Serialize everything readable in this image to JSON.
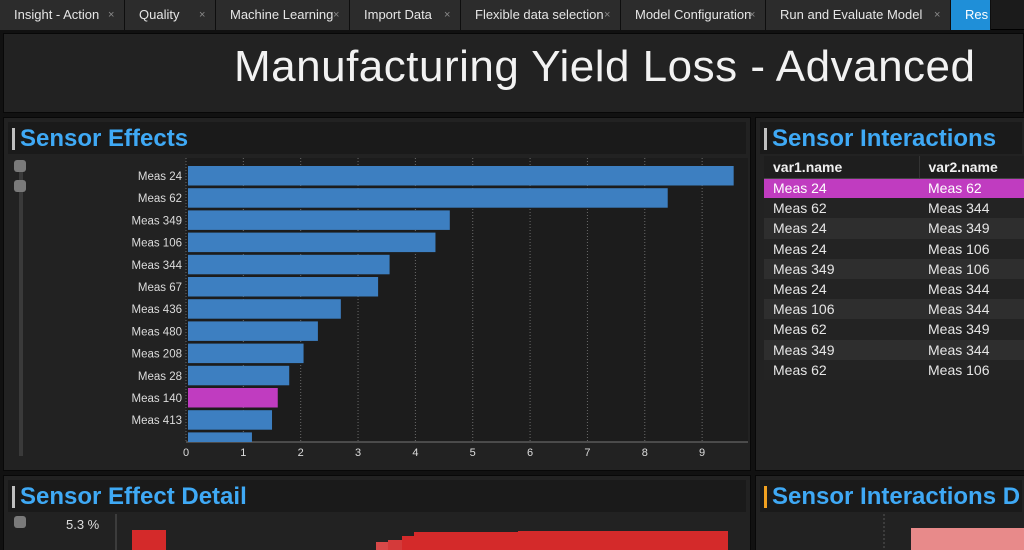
{
  "tabs": [
    {
      "label": "Insight - Action",
      "active": false
    },
    {
      "label": "Quality",
      "active": false
    },
    {
      "label": "Machine Learning",
      "active": false
    },
    {
      "label": "Import Data",
      "active": false
    },
    {
      "label": "Flexible data selection",
      "active": false
    },
    {
      "label": "Model Configuration",
      "active": false
    },
    {
      "label": "Run and Evaluate Model",
      "active": false
    },
    {
      "label": "Res",
      "active": true
    }
  ],
  "tab_close_glyph": "×",
  "page": {
    "title": "Manufacturing Yield Loss - Advanced"
  },
  "effects": {
    "title": "Sensor Effects"
  },
  "interactions": {
    "title": "Sensor Interactions",
    "columns": [
      "var1.name",
      "var2.name"
    ],
    "rows": [
      [
        "Meas 24",
        "Meas 62"
      ],
      [
        "Meas 62",
        "Meas 344"
      ],
      [
        "Meas 24",
        "Meas 349"
      ],
      [
        "Meas 24",
        "Meas 106"
      ],
      [
        "Meas 349",
        "Meas 106"
      ],
      [
        "Meas 24",
        "Meas 344"
      ],
      [
        "Meas 106",
        "Meas 344"
      ],
      [
        "Meas 62",
        "Meas 349"
      ],
      [
        "Meas 349",
        "Meas 344"
      ],
      [
        "Meas 62",
        "Meas 106"
      ]
    ],
    "selected_row": 0
  },
  "detail": {
    "title": "Sensor Effect Detail",
    "ytick": "5.3 %"
  },
  "interactions_detail": {
    "title": "Sensor Interactions D"
  },
  "colors": {
    "bar": "#3d7fc1",
    "highlight": "#c03cc0",
    "accent": "#3fa9f5",
    "detail_bar": "#d42a2a"
  },
  "chart_data": {
    "type": "bar",
    "orientation": "horizontal",
    "categories": [
      "Meas 24",
      "Meas 62",
      "Meas 349",
      "Meas 106",
      "Meas 344",
      "Meas 67",
      "Meas 436",
      "Meas 480",
      "Meas 208",
      "Meas 28",
      "Meas 140",
      "Meas 413",
      ""
    ],
    "values": [
      9.55,
      8.4,
      4.6,
      4.35,
      3.55,
      3.35,
      2.7,
      2.3,
      2.05,
      1.8,
      1.6,
      1.5,
      1.15
    ],
    "highlight_index": 10,
    "xlim": [
      0,
      9.8
    ],
    "xticks": [
      0,
      1,
      2,
      3,
      4,
      5,
      6,
      7,
      8,
      9
    ],
    "grid": "vertical dotted"
  }
}
